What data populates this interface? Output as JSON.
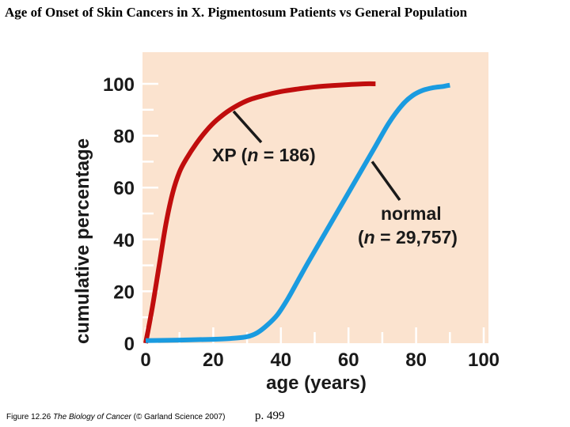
{
  "slide": {
    "title": "Age of Onset of Skin Cancers in X. Pigmentosum Patients vs General Population",
    "caption_prefix": "Figure 12.26",
    "caption_book": "The Biology of Cancer",
    "caption_suffix": "(© Garland Science 2007)",
    "page_ref": "p. 499"
  },
  "colors": {
    "plot_background": "#fbe3cf",
    "xp_line": "#c00d0d",
    "normal_line": "#1a9be0",
    "tick_color": "#ffffff"
  },
  "chart_data": {
    "type": "line",
    "title": "",
    "xlabel": "age (years)",
    "ylabel": "cumulative percentage",
    "xlim": [
      0,
      100
    ],
    "ylim": [
      0,
      110
    ],
    "xticks": [
      0,
      20,
      40,
      60,
      80,
      100
    ],
    "yticks": [
      0,
      20,
      40,
      60,
      80,
      100
    ],
    "grid": false,
    "series": [
      {
        "name": "XP",
        "label_line1": "XP (",
        "label_n": "n",
        "label_rest": " = 186)",
        "x": [
          0,
          2,
          4,
          6,
          8,
          10,
          12,
          15,
          18,
          21,
          25,
          30,
          35,
          40,
          45,
          50,
          55,
          60,
          65,
          68
        ],
        "y": [
          0,
          14,
          30,
          46,
          58,
          66,
          71,
          77,
          82,
          86,
          90,
          93.5,
          95.5,
          97,
          98,
          98.8,
          99.3,
          99.7,
          100,
          100
        ]
      },
      {
        "name": "normal",
        "label_line1": "normal",
        "label_line2_open": "(",
        "label_n": "n",
        "label_rest": " = 29,757)",
        "x": [
          0,
          10,
          20,
          25,
          30,
          33,
          36,
          39,
          42,
          45,
          48,
          52,
          56,
          60,
          64,
          68,
          72,
          76,
          79,
          82,
          85,
          88,
          90
        ],
        "y": [
          1,
          1.2,
          1.5,
          1.8,
          2.5,
          4,
          7,
          11,
          17,
          24,
          31,
          40,
          49,
          58,
          67,
          76,
          85,
          92,
          95.5,
          97.5,
          98.5,
          99,
          99.5
        ]
      }
    ]
  }
}
